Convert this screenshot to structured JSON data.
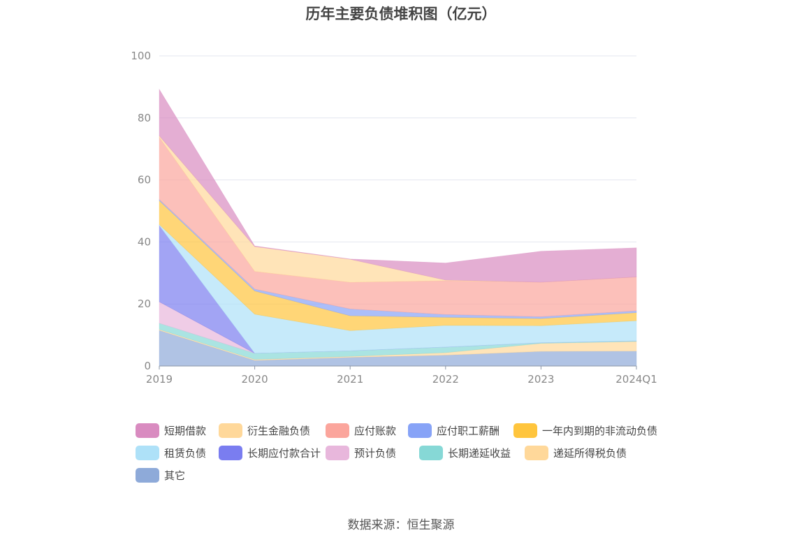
{
  "title": "历年主要负债堆积图（亿元）",
  "source": "数据来源：恒生聚源",
  "chart_data": {
    "type": "area",
    "stacked": true,
    "title": "历年主要负债堆积图（亿元）",
    "xlabel": "",
    "ylabel": "",
    "ylim": [
      0,
      100
    ],
    "yticks": [
      0,
      20,
      40,
      60,
      80,
      100
    ],
    "grid": true,
    "legend_position": "bottom",
    "categories": [
      "2019",
      "2020",
      "2021",
      "2022",
      "2023",
      "2024Q1"
    ],
    "series": [
      {
        "name": "其它",
        "color": "#8eaad9",
        "values": [
          11.5,
          1.8,
          2.8,
          3.5,
          4.7,
          4.8
        ]
      },
      {
        "name": "递延所得税负债",
        "color": "#ffd89a",
        "values": [
          0.3,
          0.3,
          0.3,
          0.8,
          2.6,
          3.1
        ]
      },
      {
        "name": "长期递延收益",
        "color": "#86d8d6",
        "values": [
          2.0,
          2.0,
          1.8,
          1.8,
          0.2,
          0.2
        ]
      },
      {
        "name": "预计负债",
        "color": "#e8b7dc",
        "values": [
          6.9,
          0,
          0,
          0,
          0,
          0
        ]
      },
      {
        "name": "长期应付款合计",
        "color": "#7a7df0",
        "values": [
          24.6,
          0,
          0,
          0,
          0,
          0
        ]
      },
      {
        "name": "租赁负债",
        "color": "#aee1f8",
        "values": [
          0.3,
          12.6,
          6.5,
          7.0,
          5.5,
          6.5
        ]
      },
      {
        "name": "一年内到期的非流动负债",
        "color": "#ffc53d",
        "values": [
          7.7,
          7.5,
          4.8,
          2.6,
          2.3,
          2.6
        ]
      },
      {
        "name": "应付职工薪酬",
        "color": "#87a3f7",
        "values": [
          0.4,
          0.6,
          2.2,
          0.9,
          0.6,
          0.6
        ]
      },
      {
        "name": "应付账款",
        "color": "#fba59c",
        "values": [
          20.0,
          5.7,
          8.6,
          10.9,
          11.1,
          10.9
        ]
      },
      {
        "name": "衍生金融负债",
        "color": "#ffd89a",
        "values": [
          0.5,
          8.0,
          7.4,
          0.2,
          0,
          0
        ]
      },
      {
        "name": "短期借款",
        "color": "#d98bc0",
        "values": [
          15.0,
          0.2,
          0.1,
          5.5,
          10.0,
          9.4
        ]
      }
    ]
  },
  "legend": [
    {
      "name": "短期借款",
      "color": "#d98bc0"
    },
    {
      "name": "衍生金融负债",
      "color": "#ffd89a"
    },
    {
      "name": "应付账款",
      "color": "#fba59c"
    },
    {
      "name": "应付职工薪酬",
      "color": "#87a3f7"
    },
    {
      "name": "一年内到期的非流动负债",
      "color": "#ffc53d"
    },
    {
      "name": "租赁负债",
      "color": "#aee1f8"
    },
    {
      "name": "长期应付款合计",
      "color": "#7a7df0"
    },
    {
      "name": "预计负债",
      "color": "#e8b7dc"
    },
    {
      "name": "长期递延收益",
      "color": "#86d8d6"
    },
    {
      "name": "递延所得税负债",
      "color": "#ffd89a"
    },
    {
      "name": "其它",
      "color": "#8eaad9"
    }
  ]
}
